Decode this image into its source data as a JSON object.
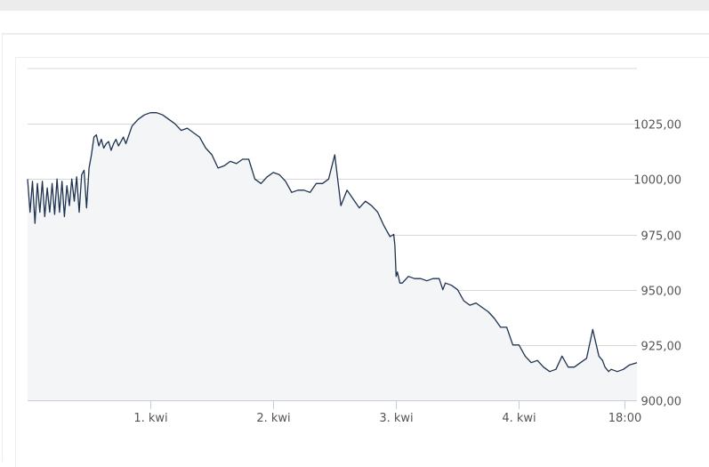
{
  "chart_data": {
    "type": "area",
    "title": "",
    "xlabel": "",
    "ylabel": "",
    "ylim": [
      900,
      1050
    ],
    "y_ticks": [
      "900,00",
      "925,00",
      "950,00",
      "975,00",
      "1000,00",
      "1025,00"
    ],
    "y_tick_values": [
      900,
      925,
      950,
      975,
      1000,
      1025
    ],
    "x_ticks": [
      "1. kwi",
      "2. kwi",
      "3. kwi",
      "4. kwi",
      "18:00"
    ],
    "x_tick_values": [
      1,
      2,
      3,
      4,
      4.86
    ],
    "xlim": [
      0,
      4.96
    ],
    "grid": true,
    "legend": "none",
    "colors": {
      "line": "#1f3350",
      "fill": "#f4f5f7",
      "grid": "#d8d8d8",
      "axis": "#c6cdd8"
    },
    "series": [
      {
        "x": [
          0,
          0.02,
          0.04,
          0.06,
          0.08,
          0.1,
          0.12,
          0.14,
          0.16,
          0.18,
          0.2,
          0.22,
          0.24,
          0.26,
          0.28,
          0.3,
          0.32,
          0.34,
          0.36,
          0.38,
          0.4,
          0.42,
          0.44,
          0.46,
          0.48,
          0.5,
          0.52,
          0.54,
          0.56,
          0.58,
          0.6,
          0.62,
          0.64,
          0.66,
          0.68,
          0.7,
          0.72,
          0.74,
          0.76,
          0.78,
          0.8,
          0.85,
          0.9,
          0.95,
          1.0,
          1.05,
          1.1,
          1.15,
          1.2,
          1.25,
          1.3,
          1.35,
          1.4,
          1.45,
          1.5,
          1.55,
          1.6,
          1.65,
          1.7,
          1.75,
          1.8,
          1.85,
          1.9,
          1.95,
          2.0,
          2.05,
          2.1,
          2.15,
          2.2,
          2.25,
          2.3,
          2.35,
          2.4,
          2.45,
          2.5,
          2.55,
          2.6,
          2.65,
          2.7,
          2.75,
          2.8,
          2.85,
          2.9,
          2.95,
          2.98,
          2.99,
          3.0,
          3.01,
          3.03,
          3.05,
          3.1,
          3.15,
          3.2,
          3.25,
          3.3,
          3.35,
          3.38,
          3.4,
          3.45,
          3.5,
          3.55,
          3.6,
          3.65,
          3.7,
          3.75,
          3.8,
          3.85,
          3.9,
          3.95,
          4.0,
          4.05,
          4.1,
          4.15,
          4.2,
          4.25,
          4.3,
          4.35,
          4.4,
          4.45,
          4.5,
          4.55,
          4.6,
          4.65,
          4.68,
          4.7,
          4.73,
          4.75,
          4.8,
          4.85,
          4.9,
          4.96
        ],
        "values": [
          1000,
          985,
          999,
          980,
          998,
          985,
          999,
          983,
          996,
          985,
          998,
          984,
          1000,
          985,
          999,
          983,
          997,
          988,
          1000,
          990,
          1001,
          985,
          1002,
          1004,
          987,
          1005,
          1011,
          1019,
          1020,
          1015,
          1018,
          1014,
          1016,
          1017,
          1013,
          1016,
          1018,
          1015,
          1017,
          1019,
          1016,
          1024,
          1027,
          1029,
          1030,
          1030,
          1029,
          1027,
          1025,
          1022,
          1023,
          1021,
          1019,
          1014,
          1011,
          1005,
          1006,
          1008,
          1007,
          1009,
          1009,
          1000,
          998,
          1001,
          1003,
          1002,
          999,
          994,
          995,
          995,
          994,
          998,
          998,
          1000,
          1011,
          988,
          995,
          991,
          987,
          990,
          988,
          985,
          979,
          974,
          975,
          970,
          956,
          958,
          953,
          953,
          956,
          955,
          955,
          954,
          955,
          955,
          950,
          953,
          952,
          950,
          945,
          943,
          944,
          942,
          940,
          937,
          933,
          933,
          925,
          925,
          920,
          917,
          918,
          915,
          913,
          914,
          920,
          915,
          915,
          917,
          919,
          932,
          920,
          918,
          915,
          913,
          914,
          913,
          914,
          916,
          917
        ]
      }
    ]
  }
}
